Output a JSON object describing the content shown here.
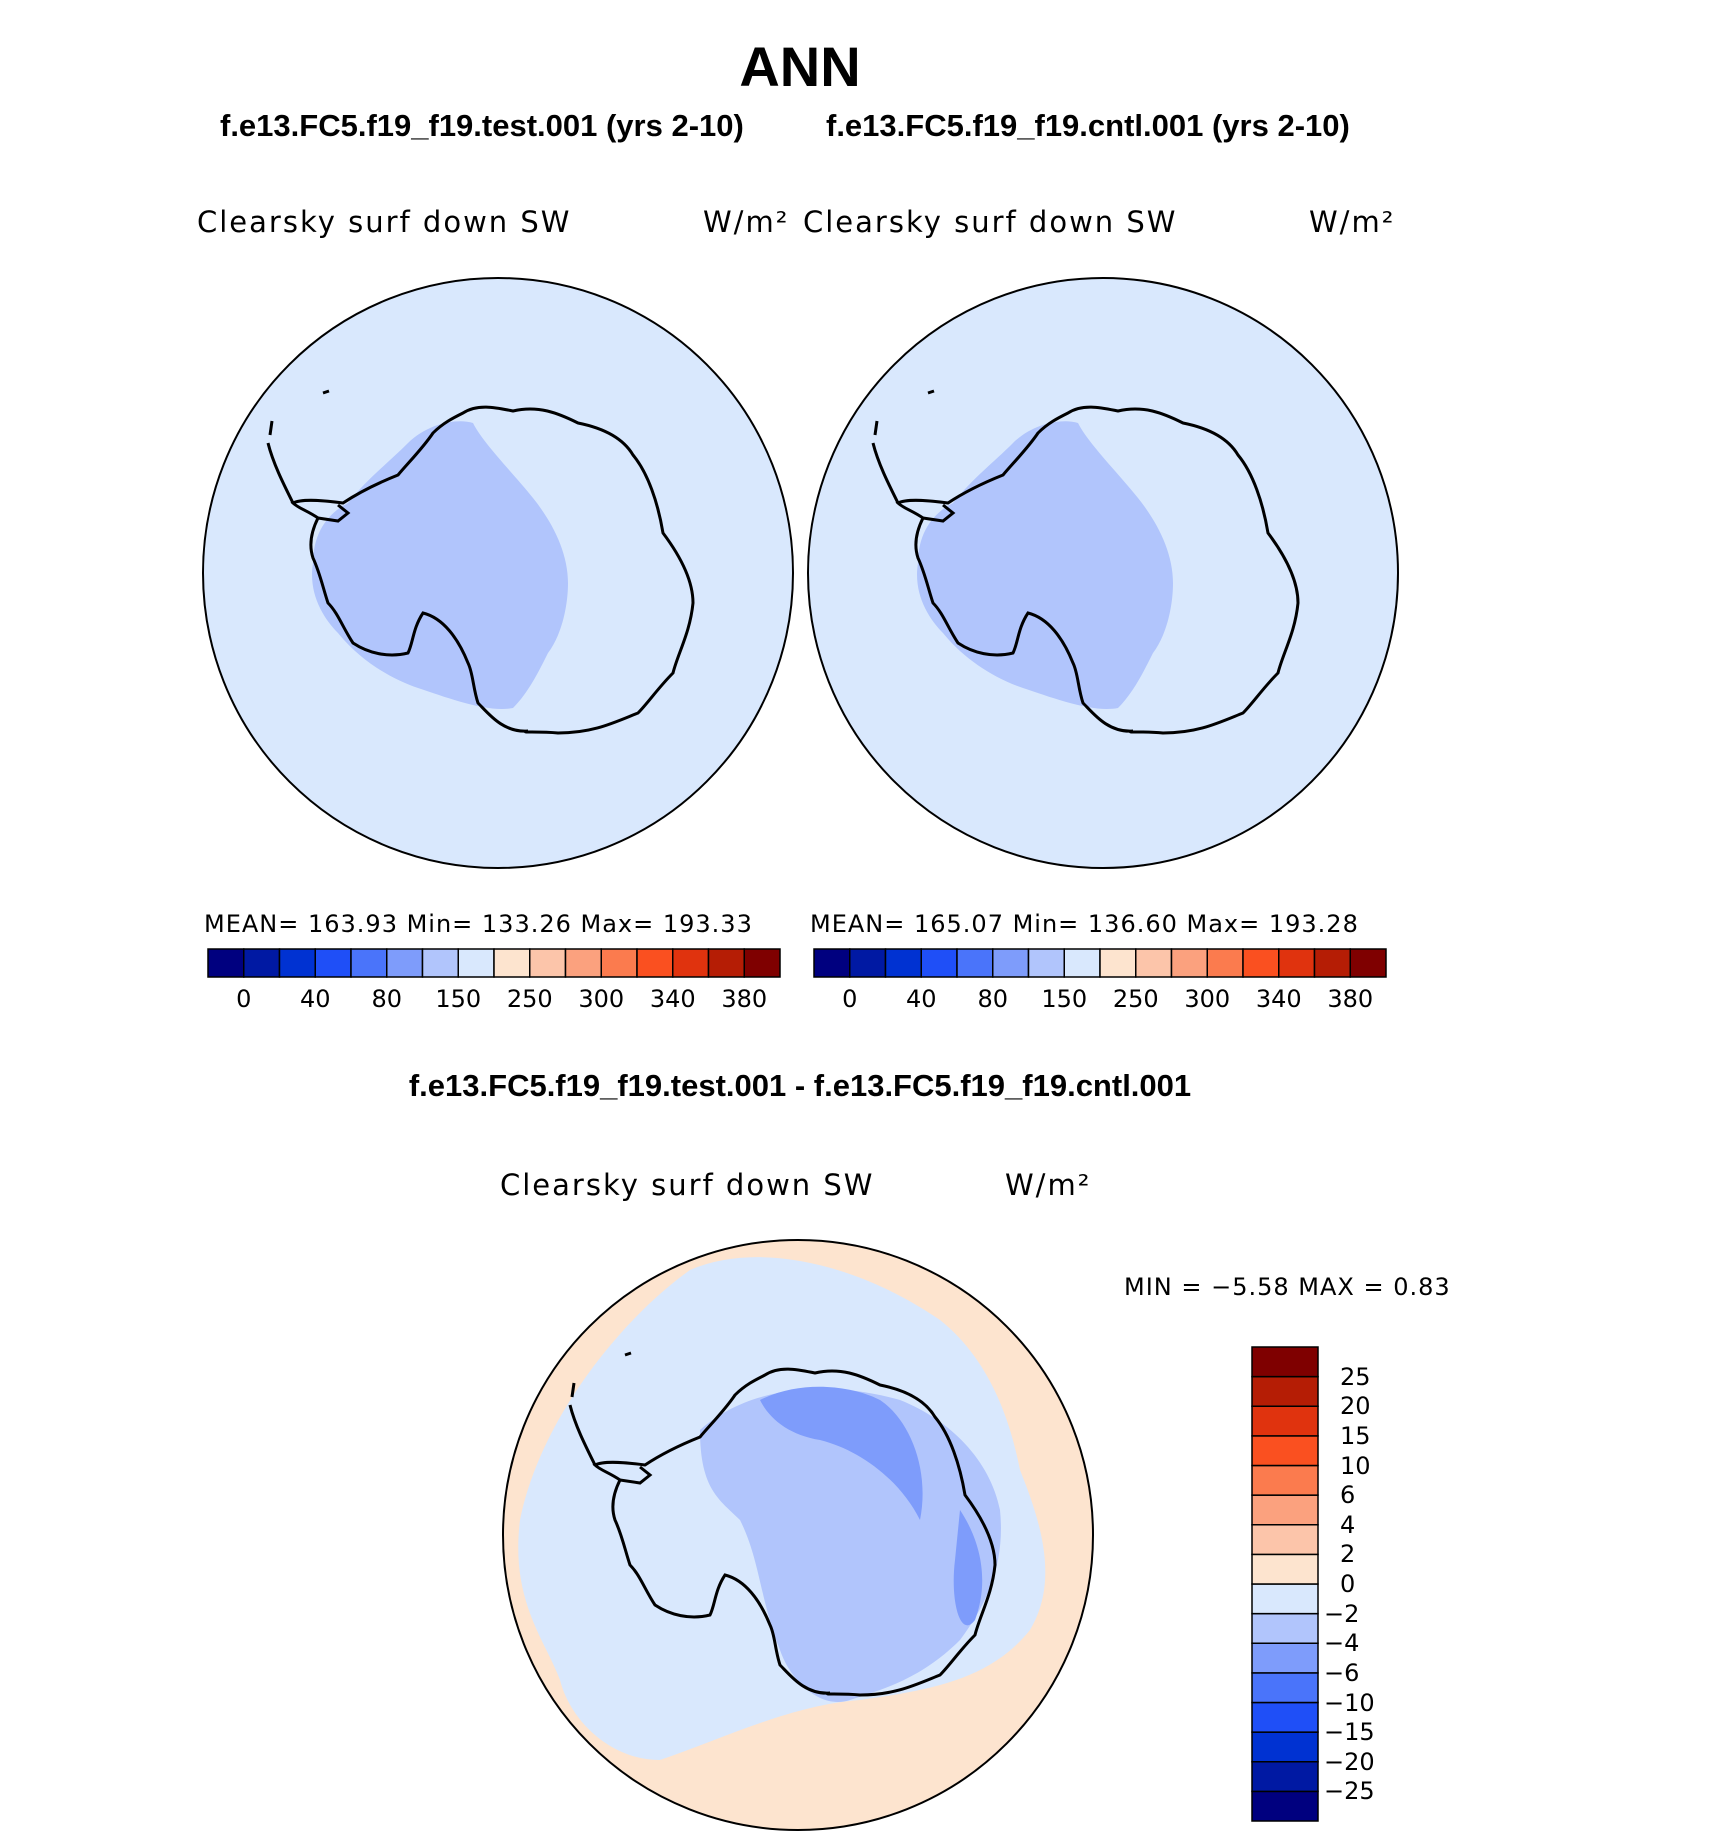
{
  "title": "ANN",
  "panels": {
    "test": {
      "case_title": "f.e13.FC5.f19_f19.test.001 (yrs 2-10)",
      "variable": "Clearsky surf down SW",
      "units": "W/m²",
      "stats": "MEAN=  163.93    Min=  133.26    Max=  193.33"
    },
    "cntl": {
      "case_title": "f.e13.FC5.f19_f19.cntl.001 (yrs 2-10)",
      "variable": "Clearsky surf down SW",
      "units": "W/m²",
      "stats": "MEAN=  165.07    Min=  136.60    Max=  193.28"
    },
    "diff": {
      "case_title": "f.e13.FC5.f19_f19.test.001 - f.e13.FC5.f19_f19.cntl.001",
      "variable": "Clearsky surf down SW",
      "units": "W/m²",
      "stats": "MIN  =    −5.58  MAX  =     0.83"
    }
  },
  "colorbars": {
    "main": {
      "colors": [
        "#00007f",
        "#0019a3",
        "#0032d2",
        "#1f4ff7",
        "#4a74fa",
        "#7e9cfb",
        "#b1c5fc",
        "#d9e8fd",
        "#fde4cf",
        "#fcc5aa",
        "#fba17e",
        "#fb7b4e",
        "#fa5020",
        "#e0330e",
        "#b51d05",
        "#7f0000"
      ],
      "labels": [
        "0",
        "40",
        "80",
        "150",
        "250",
        "300",
        "340",
        "380"
      ]
    },
    "diff": {
      "colors": [
        "#00007f",
        "#0019a3",
        "#0032d2",
        "#1f4ff7",
        "#4a74fa",
        "#7e9cfb",
        "#b1c5fc",
        "#d9e8fd",
        "#fde4cf",
        "#fcc5aa",
        "#fba17e",
        "#fb7b4e",
        "#fa5020",
        "#e0330e",
        "#b51d05",
        "#7f0000"
      ],
      "labels": [
        "25",
        "20",
        "15",
        "10",
        "6",
        "4",
        "2",
        "0",
        "−2",
        "−4",
        "−6",
        "−10",
        "−15",
        "−20",
        "−25"
      ]
    }
  },
  "chart_data": [
    {
      "type": "heatmap",
      "title": "f.e13.FC5.f19_f19.test.001 (yrs 2-10)",
      "variable": "Clearsky surf down SW",
      "units": "W/m^2",
      "projection": "south-polar stereographic",
      "mean": 163.93,
      "min": 133.26,
      "max": 193.33,
      "contour_levels": [
        0,
        40,
        80,
        150,
        250,
        300,
        340,
        380
      ]
    },
    {
      "type": "heatmap",
      "title": "f.e13.FC5.f19_f19.cntl.001 (yrs 2-10)",
      "variable": "Clearsky surf down SW",
      "units": "W/m^2",
      "projection": "south-polar stereographic",
      "mean": 165.07,
      "min": 136.6,
      "max": 193.28,
      "contour_levels": [
        0,
        40,
        80,
        150,
        250,
        300,
        340,
        380
      ]
    },
    {
      "type": "heatmap",
      "title": "f.e13.FC5.f19_f19.test.001 - f.e13.FC5.f19_f19.cntl.001",
      "variable": "Clearsky surf down SW",
      "units": "W/m^2",
      "projection": "south-polar stereographic",
      "min": -5.58,
      "max": 0.83,
      "contour_levels": [
        -25,
        -20,
        -15,
        -10,
        -6,
        -4,
        -2,
        0,
        2,
        4,
        6,
        10,
        15,
        20,
        25
      ]
    }
  ]
}
